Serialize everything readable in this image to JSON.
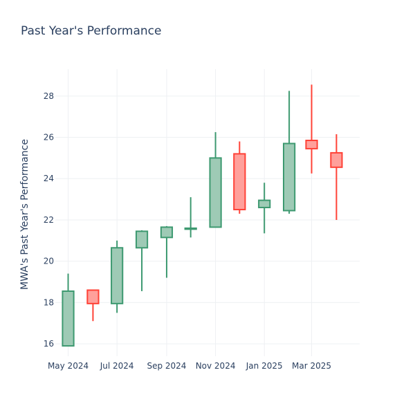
{
  "chart_data": {
    "type": "candlestick",
    "title": "Past Year's Performance",
    "xlabel": "",
    "ylabel": "MWA's Past Year's Performance",
    "ylim": [
      15.4,
      29.3
    ],
    "yticks": [
      16,
      18,
      20,
      22,
      24,
      26,
      28
    ],
    "xrange": [
      "2024-04-15",
      "2025-04-30"
    ],
    "xticks": [
      {
        "date": "2024-05-01",
        "label": "May 2024"
      },
      {
        "date": "2024-07-01",
        "label": "Jul 2024"
      },
      {
        "date": "2024-09-01",
        "label": "Sep 2024"
      },
      {
        "date": "2024-11-01",
        "label": "Nov 2024"
      },
      {
        "date": "2025-01-01",
        "label": "Jan 2025"
      },
      {
        "date": "2025-03-01",
        "label": "Mar 2025"
      }
    ],
    "grid": true,
    "colors": {
      "increasing": "#3d9970",
      "increasing_fill": "#9ecab5",
      "decreasing": "#ff4136",
      "decreasing_fill": "#ffa09b"
    },
    "candles": [
      {
        "date": "2024-05-01",
        "open": 15.9,
        "high": 19.4,
        "low": 15.9,
        "close": 18.55
      },
      {
        "date": "2024-06-01",
        "open": 18.6,
        "high": 18.6,
        "low": 17.1,
        "close": 17.95
      },
      {
        "date": "2024-07-01",
        "open": 17.95,
        "high": 21.0,
        "low": 17.5,
        "close": 20.65
      },
      {
        "date": "2024-08-01",
        "open": 20.65,
        "high": 21.5,
        "low": 18.55,
        "close": 21.45
      },
      {
        "date": "2024-09-01",
        "open": 21.15,
        "high": 21.7,
        "low": 19.2,
        "close": 21.65
      },
      {
        "date": "2024-10-01",
        "open": 21.55,
        "high": 23.1,
        "low": 21.15,
        "close": 21.6
      },
      {
        "date": "2024-11-01",
        "open": 21.65,
        "high": 26.25,
        "low": 21.65,
        "close": 25.0
      },
      {
        "date": "2024-12-01",
        "open": 25.2,
        "high": 25.8,
        "low": 22.3,
        "close": 22.5
      },
      {
        "date": "2025-01-01",
        "open": 22.6,
        "high": 23.8,
        "low": 21.35,
        "close": 22.95
      },
      {
        "date": "2025-02-01",
        "open": 22.45,
        "high": 28.25,
        "low": 22.3,
        "close": 25.7
      },
      {
        "date": "2025-03-01",
        "open": 25.85,
        "high": 28.55,
        "low": 24.25,
        "close": 25.45
      },
      {
        "date": "2025-04-01",
        "open": 25.25,
        "high": 26.15,
        "low": 22.0,
        "close": 24.55
      }
    ]
  }
}
